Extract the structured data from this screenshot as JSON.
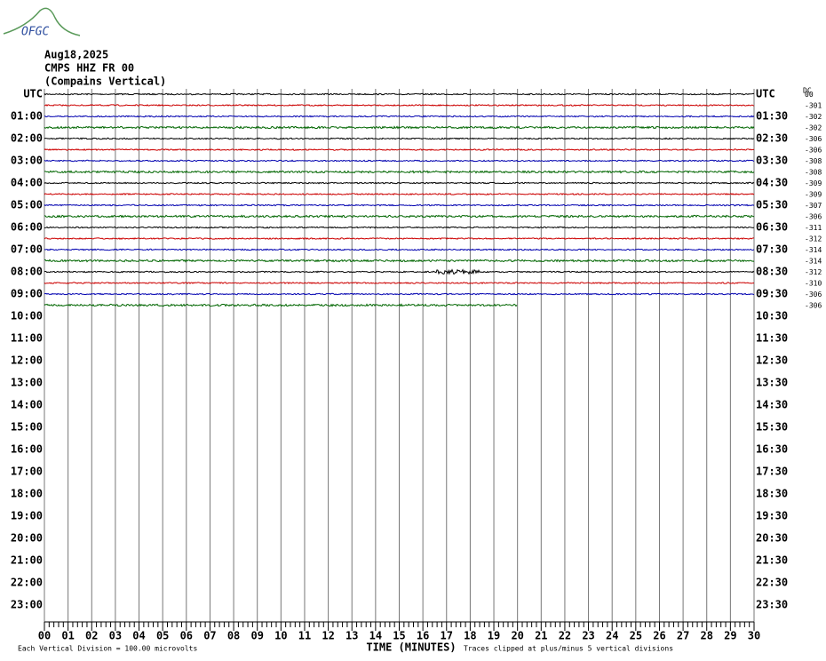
{
  "logo": "OFGC",
  "header": {
    "date": "Aug18,2025",
    "station": "CMPS HHZ FR 00",
    "description": "(Compains Vertical)"
  },
  "left_labels": [
    "UTC",
    "01:00",
    "02:00",
    "03:00",
    "04:00",
    "05:00",
    "06:00",
    "07:00",
    "08:00",
    "09:00",
    "10:00",
    "11:00",
    "12:00",
    "13:00",
    "14:00",
    "15:00",
    "16:00",
    "17:00",
    "18:00",
    "19:00",
    "20:00",
    "21:00",
    "22:00",
    "23:00"
  ],
  "right_labels": [
    "UTC",
    "01:30",
    "02:30",
    "03:30",
    "04:30",
    "05:30",
    "06:30",
    "07:30",
    "08:30",
    "09:30",
    "10:30",
    "11:30",
    "12:30",
    "13:30",
    "14:30",
    "15:30",
    "16:30",
    "17:30",
    "18:30",
    "19:30",
    "20:30",
    "21:30",
    "22:30",
    "23:30"
  ],
  "offset_header": "DC",
  "offsets": [
    "00",
    "-301",
    "-302",
    "-302",
    "-306",
    "-306",
    "-308",
    "-308",
    "-309",
    "-309",
    "-307",
    "-306",
    "-311",
    "-312",
    "-314",
    "-314",
    "-312",
    "-310",
    "-306",
    "-306"
  ],
  "trace_colors": [
    "#000000",
    "#cc0000",
    "#0000b0",
    "#006600"
  ],
  "x_ticks": [
    "00",
    "01",
    "02",
    "03",
    "04",
    "05",
    "06",
    "07",
    "08",
    "09",
    "10",
    "11",
    "12",
    "13",
    "14",
    "15",
    "16",
    "17",
    "18",
    "19",
    "20",
    "21",
    "22",
    "23",
    "24",
    "25",
    "26",
    "27",
    "28",
    "29",
    "30"
  ],
  "footer": {
    "scale": "Each Vertical Division =  100.00 microvolts",
    "axis_title": "TIME (MINUTES)",
    "clip": "Traces clipped at plus/minus 5 vertical divisions"
  }
}
